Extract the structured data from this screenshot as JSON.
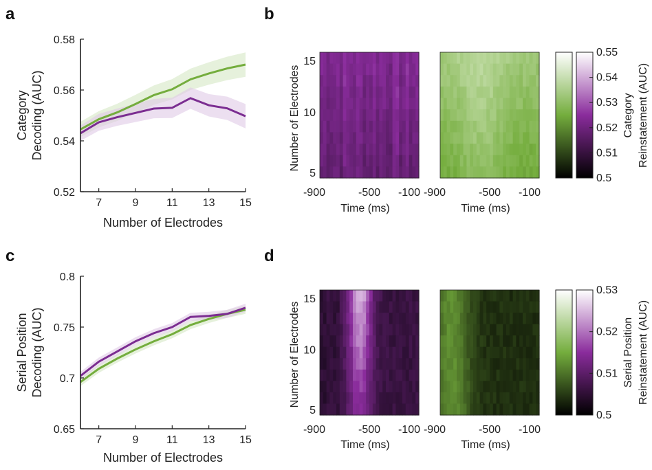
{
  "panels": {
    "a": "a",
    "b": "b",
    "c": "c",
    "d": "d"
  },
  "colors": {
    "green": "#74ad3d",
    "purple": "#7b2d91",
    "green_band": "#d6e8c4",
    "purple_band": "#dfcae6"
  },
  "chart_data": [
    {
      "id": "a",
      "type": "line",
      "xlabel": "Number of Electrodes",
      "ylabel_lines": [
        "Category",
        "Decoding (AUC)"
      ],
      "xlim": [
        6,
        15
      ],
      "ylim": [
        0.52,
        0.58
      ],
      "xticks": [
        7,
        9,
        11,
        13,
        15
      ],
      "yticks": [
        0.52,
        0.54,
        0.56,
        0.58
      ],
      "ytick_labels": [
        "0.52",
        "0.54",
        "0.56",
        "0.58"
      ],
      "x": [
        6,
        7,
        8,
        9,
        10,
        11,
        12,
        13,
        14,
        15
      ],
      "series": [
        {
          "color": "green",
          "values": [
            0.5445,
            0.5485,
            0.5512,
            0.5545,
            0.558,
            0.5603,
            0.5642,
            0.5665,
            0.5685,
            0.57
          ],
          "err": [
            0.003,
            0.0032,
            0.0034,
            0.0036,
            0.0038,
            0.004,
            0.0042,
            0.0044,
            0.0046,
            0.0048
          ]
        },
        {
          "color": "purple",
          "values": [
            0.543,
            0.5473,
            0.5493,
            0.551,
            0.5527,
            0.553,
            0.5568,
            0.554,
            0.5528,
            0.5497
          ],
          "err": [
            0.003,
            0.0033,
            0.0034,
            0.0036,
            0.0038,
            0.004,
            0.0042,
            0.0044,
            0.0046,
            0.0048
          ]
        }
      ]
    },
    {
      "id": "b",
      "type": "heatmap",
      "xlabel": "Time (ms)",
      "ylabel": "Number of Electrodes",
      "xticks": [
        "-900",
        "-500",
        "-100"
      ],
      "yticks": [
        "5",
        "10",
        "15"
      ],
      "colorbar_ticks": [
        "0.5",
        "0.51",
        "0.52",
        "0.53",
        "0.54",
        "0.55"
      ],
      "colorbar_label_lines": [
        "Category",
        "Reinstatement (AUC)"
      ],
      "clim": [
        0.5,
        0.55
      ]
    },
    {
      "id": "c",
      "type": "line",
      "xlabel": "Number of Electrodes",
      "ylabel_lines": [
        "Serial Position",
        "Decoding (AUC)"
      ],
      "xlim": [
        6,
        15
      ],
      "ylim": [
        0.65,
        0.8
      ],
      "xticks": [
        7,
        9,
        11,
        13,
        15
      ],
      "yticks": [
        0.65,
        0.7,
        0.75,
        0.8
      ],
      "ytick_labels": [
        "0.65",
        "0.7",
        "0.75",
        "0.8"
      ],
      "x": [
        6,
        7,
        8,
        9,
        10,
        11,
        12,
        13,
        14,
        15
      ],
      "series": [
        {
          "color": "green",
          "values": [
            0.696,
            0.709,
            0.719,
            0.728,
            0.736,
            0.743,
            0.752,
            0.758,
            0.763,
            0.767
          ],
          "err": [
            0.004,
            0.004,
            0.004,
            0.004,
            0.004,
            0.004,
            0.004,
            0.004,
            0.004,
            0.004
          ]
        },
        {
          "color": "purple",
          "values": [
            0.702,
            0.716,
            0.726,
            0.736,
            0.744,
            0.75,
            0.76,
            0.761,
            0.763,
            0.769
          ],
          "err": [
            0.004,
            0.004,
            0.004,
            0.004,
            0.004,
            0.004,
            0.004,
            0.004,
            0.004,
            0.004
          ]
        }
      ]
    },
    {
      "id": "d",
      "type": "heatmap",
      "xlabel": "Time (ms)",
      "ylabel": "Number of Electrodes",
      "xticks": [
        "-900",
        "-500",
        "-100"
      ],
      "yticks": [
        "5",
        "10",
        "15"
      ],
      "colorbar_ticks": [
        "0.5",
        "0.51",
        "0.52",
        "0.53"
      ],
      "colorbar_label_lines": [
        "Serial Position",
        "Reinstatement (AUC)"
      ],
      "clim": [
        0.5,
        0.53
      ]
    }
  ]
}
